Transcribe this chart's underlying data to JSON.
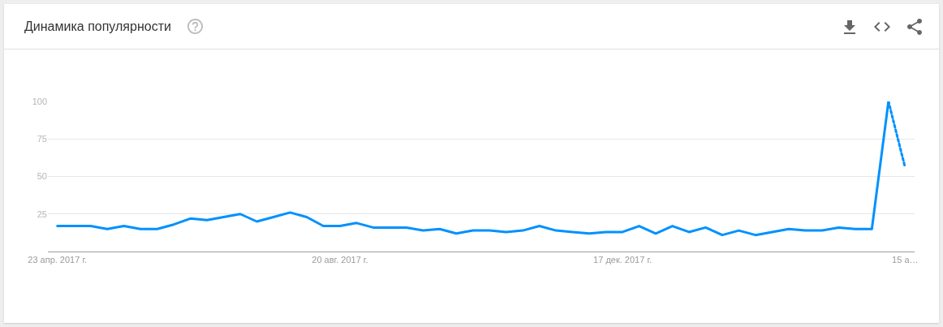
{
  "chart_data": {
    "type": "line",
    "title": "Динамика популярности",
    "series": [
      {
        "color": "#0091ff",
        "line_style": "solid",
        "x": [
          "2017-04-23",
          "2017-04-30",
          "2017-05-07",
          "2017-05-14",
          "2017-05-21",
          "2017-05-28",
          "2017-06-04",
          "2017-06-11",
          "2017-06-18",
          "2017-06-25",
          "2017-07-02",
          "2017-07-09",
          "2017-07-16",
          "2017-07-23",
          "2017-07-30",
          "2017-08-06",
          "2017-08-13",
          "2017-08-20",
          "2017-08-27",
          "2017-09-03",
          "2017-09-10",
          "2017-09-17",
          "2017-09-24",
          "2017-10-01",
          "2017-10-08",
          "2017-10-15",
          "2017-10-22",
          "2017-10-29",
          "2017-11-05",
          "2017-11-12",
          "2017-11-19",
          "2017-11-26",
          "2017-12-03",
          "2017-12-10",
          "2017-12-17",
          "2017-12-24",
          "2017-12-31",
          "2018-01-07",
          "2018-01-14",
          "2018-01-21",
          "2018-01-28",
          "2018-02-04",
          "2018-02-11",
          "2018-02-18",
          "2018-02-25",
          "2018-03-04",
          "2018-03-11",
          "2018-03-18",
          "2018-03-25",
          "2018-04-01",
          "2018-04-08"
        ],
        "values": [
          17,
          17,
          17,
          15,
          17,
          15,
          15,
          18,
          22,
          21,
          23,
          25,
          20,
          23,
          26,
          23,
          17,
          17,
          19,
          16,
          16,
          16,
          14,
          15,
          12,
          14,
          14,
          13,
          14,
          17,
          14,
          13,
          12,
          13,
          13,
          17,
          12,
          17,
          13,
          16,
          11,
          14,
          11,
          13,
          15,
          14,
          14,
          16,
          15,
          15,
          100
        ]
      },
      {
        "color": "#0091ff",
        "line_style": "dotted",
        "x": [
          "2018-04-08",
          "2018-04-15"
        ],
        "values": [
          100,
          56
        ]
      }
    ],
    "xlim": [
      "2017-04-19",
      "2018-04-19"
    ],
    "xticks": [
      {
        "value": "2017-04-23",
        "label": "23 апр. 2017 г."
      },
      {
        "value": "2017-08-20",
        "label": "20 авг. 2017 г."
      },
      {
        "value": "2017-12-17",
        "label": "17 дек. 2017 г."
      },
      {
        "value": "2018-04-15",
        "label": "15 а…"
      }
    ],
    "ylim": [
      0,
      100
    ],
    "yticks": [
      25,
      50,
      75,
      100
    ],
    "grid": "y"
  }
}
